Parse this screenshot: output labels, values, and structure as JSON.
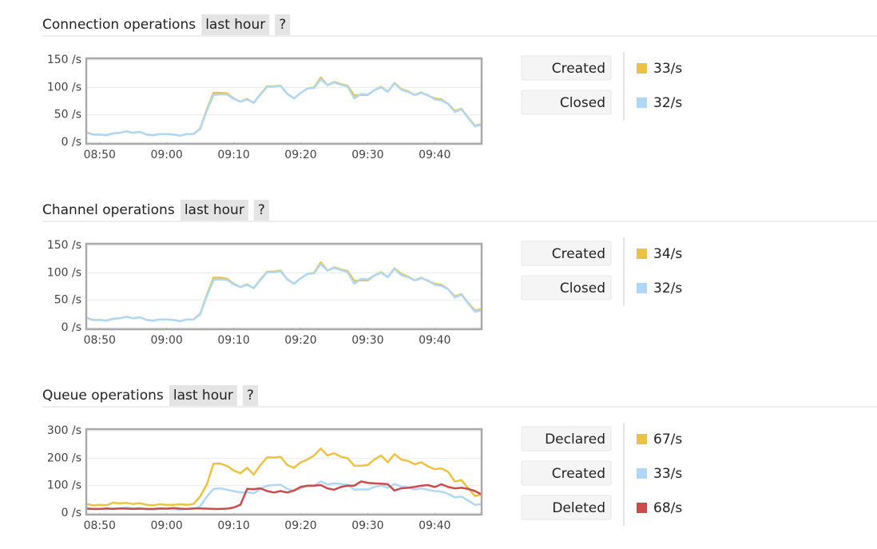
{
  "chart_data": [
    {
      "type": "line",
      "title": "Connection operations",
      "period": "last hour",
      "help": "?",
      "x": [
        "08:48",
        "08:49",
        "08:50",
        "08:51",
        "08:52",
        "08:53",
        "08:54",
        "08:55",
        "08:56",
        "08:57",
        "08:58",
        "08:59",
        "09:00",
        "09:01",
        "09:02",
        "09:03",
        "09:04",
        "09:05",
        "09:06",
        "09:07",
        "09:08",
        "09:09",
        "09:10",
        "09:11",
        "09:12",
        "09:13",
        "09:14",
        "09:15",
        "09:16",
        "09:17",
        "09:18",
        "09:19",
        "09:20",
        "09:21",
        "09:22",
        "09:23",
        "09:24",
        "09:25",
        "09:26",
        "09:27",
        "09:28",
        "09:29",
        "09:30",
        "09:31",
        "09:32",
        "09:33",
        "09:34",
        "09:35",
        "09:36",
        "09:37",
        "09:38",
        "09:39",
        "09:40",
        "09:41",
        "09:42",
        "09:43",
        "09:44",
        "09:45",
        "09:46",
        "09:47"
      ],
      "xlim": [
        "08:48",
        "09:47"
      ],
      "xticks": [
        "08:50",
        "09:00",
        "09:10",
        "09:20",
        "09:30",
        "09:40"
      ],
      "ylim": [
        0,
        150
      ],
      "yticks": [
        {
          "value": 0,
          "label": "0 /s"
        },
        {
          "value": 50,
          "label": "50 /s"
        },
        {
          "value": 100,
          "label": "100 /s"
        },
        {
          "value": 150,
          "label": "150 /s"
        }
      ],
      "grid": true,
      "series": [
        {
          "name": "Created",
          "color": "#edc240",
          "rate": "33/s",
          "values": [
            18,
            14,
            14,
            13,
            16,
            17,
            20,
            17,
            19,
            14,
            13,
            15,
            15,
            14,
            12,
            15,
            15,
            25,
            60,
            90,
            90,
            89,
            80,
            74,
            79,
            72,
            88,
            102,
            102,
            103,
            88,
            80,
            90,
            98,
            100,
            118,
            104,
            110,
            106,
            103,
            85,
            86,
            86,
            95,
            101,
            92,
            108,
            97,
            93,
            86,
            91,
            85,
            80,
            78,
            70,
            57,
            61,
            45,
            30,
            33
          ]
        },
        {
          "name": "Closed",
          "color": "#afd8f8",
          "rate": "32/s",
          "values": [
            18,
            14,
            14,
            13,
            16,
            17,
            20,
            17,
            19,
            14,
            13,
            15,
            15,
            14,
            12,
            15,
            15,
            24,
            58,
            86,
            87,
            87,
            79,
            74,
            78,
            72,
            87,
            101,
            101,
            103,
            88,
            80,
            90,
            98,
            99,
            115,
            104,
            109,
            105,
            101,
            80,
            88,
            87,
            95,
            100,
            92,
            107,
            96,
            92,
            86,
            90,
            86,
            78,
            76,
            70,
            55,
            60,
            44,
            29,
            32
          ]
        }
      ]
    },
    {
      "type": "line",
      "title": "Channel operations",
      "period": "last hour",
      "help": "?",
      "x": [
        "08:48",
        "08:49",
        "08:50",
        "08:51",
        "08:52",
        "08:53",
        "08:54",
        "08:55",
        "08:56",
        "08:57",
        "08:58",
        "08:59",
        "09:00",
        "09:01",
        "09:02",
        "09:03",
        "09:04",
        "09:05",
        "09:06",
        "09:07",
        "09:08",
        "09:09",
        "09:10",
        "09:11",
        "09:12",
        "09:13",
        "09:14",
        "09:15",
        "09:16",
        "09:17",
        "09:18",
        "09:19",
        "09:20",
        "09:21",
        "09:22",
        "09:23",
        "09:24",
        "09:25",
        "09:26",
        "09:27",
        "09:28",
        "09:29",
        "09:30",
        "09:31",
        "09:32",
        "09:33",
        "09:34",
        "09:35",
        "09:36",
        "09:37",
        "09:38",
        "09:39",
        "09:40",
        "09:41",
        "09:42",
        "09:43",
        "09:44",
        "09:45",
        "09:46",
        "09:47"
      ],
      "xlim": [
        "08:48",
        "09:47"
      ],
      "xticks": [
        "08:50",
        "09:00",
        "09:10",
        "09:20",
        "09:30",
        "09:40"
      ],
      "ylim": [
        0,
        150
      ],
      "yticks": [
        {
          "value": 0,
          "label": "0 /s"
        },
        {
          "value": 50,
          "label": "50 /s"
        },
        {
          "value": 100,
          "label": "100 /s"
        },
        {
          "value": 150,
          "label": "150 /s"
        }
      ],
      "grid": true,
      "series": [
        {
          "name": "Created",
          "color": "#edc240",
          "rate": "34/s",
          "values": [
            18,
            14,
            14,
            13,
            16,
            17,
            20,
            17,
            19,
            14,
            13,
            15,
            15,
            14,
            12,
            15,
            15,
            25,
            60,
            91,
            91,
            89,
            80,
            74,
            79,
            72,
            88,
            102,
            102,
            104,
            88,
            80,
            90,
            98,
            100,
            119,
            104,
            110,
            106,
            103,
            85,
            86,
            86,
            95,
            101,
            92,
            108,
            98,
            93,
            86,
            91,
            85,
            80,
            78,
            70,
            57,
            61,
            45,
            31,
            34
          ]
        },
        {
          "name": "Closed",
          "color": "#afd8f8",
          "rate": "32/s",
          "values": [
            18,
            14,
            14,
            13,
            16,
            17,
            20,
            17,
            19,
            14,
            13,
            15,
            15,
            14,
            12,
            15,
            15,
            24,
            58,
            87,
            88,
            87,
            79,
            74,
            78,
            72,
            87,
            101,
            101,
            103,
            88,
            80,
            90,
            98,
            99,
            116,
            104,
            109,
            105,
            101,
            80,
            89,
            88,
            95,
            100,
            92,
            107,
            96,
            92,
            86,
            90,
            86,
            78,
            76,
            70,
            55,
            60,
            44,
            29,
            32
          ]
        }
      ]
    },
    {
      "type": "line",
      "title": "Queue operations",
      "period": "last hour",
      "help": "?",
      "x": [
        "08:48",
        "08:49",
        "08:50",
        "08:51",
        "08:52",
        "08:53",
        "08:54",
        "08:55",
        "08:56",
        "08:57",
        "08:58",
        "08:59",
        "09:00",
        "09:01",
        "09:02",
        "09:03",
        "09:04",
        "09:05",
        "09:06",
        "09:07",
        "09:08",
        "09:09",
        "09:10",
        "09:11",
        "09:12",
        "09:13",
        "09:14",
        "09:15",
        "09:16",
        "09:17",
        "09:18",
        "09:19",
        "09:20",
        "09:21",
        "09:22",
        "09:23",
        "09:24",
        "09:25",
        "09:26",
        "09:27",
        "09:28",
        "09:29",
        "09:30",
        "09:31",
        "09:32",
        "09:33",
        "09:34",
        "09:35",
        "09:36",
        "09:37",
        "09:38",
        "09:39",
        "09:40",
        "09:41",
        "09:42",
        "09:43",
        "09:44",
        "09:45",
        "09:46",
        "09:47"
      ],
      "xlim": [
        "08:48",
        "09:47"
      ],
      "xticks": [
        "08:50",
        "09:00",
        "09:10",
        "09:20",
        "09:30",
        "09:40"
      ],
      "ylim": [
        0,
        300
      ],
      "yticks": [
        {
          "value": 0,
          "label": "0 /s"
        },
        {
          "value": 100,
          "label": "100 /s"
        },
        {
          "value": 200,
          "label": "200 /s"
        },
        {
          "value": 300,
          "label": "300 /s"
        }
      ],
      "grid": true,
      "series": [
        {
          "name": "Declared",
          "color": "#edc240",
          "rate": "67/s",
          "values": [
            33,
            28,
            30,
            28,
            38,
            35,
            37,
            33,
            36,
            30,
            28,
            32,
            30,
            30,
            32,
            30,
            33,
            60,
            105,
            180,
            180,
            172,
            155,
            145,
            165,
            140,
            175,
            203,
            202,
            205,
            175,
            165,
            185,
            195,
            210,
            235,
            210,
            218,
            205,
            200,
            172,
            172,
            175,
            195,
            210,
            185,
            215,
            195,
            190,
            178,
            185,
            170,
            160,
            163,
            150,
            115,
            120,
            90,
            62,
            67
          ]
        },
        {
          "name": "Created",
          "color": "#afd8f8",
          "rate": "33/s",
          "values": [
            18,
            15,
            15,
            14,
            16,
            17,
            20,
            17,
            19,
            14,
            13,
            15,
            15,
            14,
            12,
            15,
            15,
            25,
            60,
            88,
            90,
            85,
            80,
            75,
            76,
            72,
            88,
            100,
            102,
            103,
            88,
            80,
            90,
            98,
            100,
            115,
            104,
            108,
            106,
            103,
            85,
            86,
            86,
            95,
            101,
            92,
            106,
            97,
            93,
            86,
            90,
            85,
            80,
            78,
            70,
            57,
            60,
            45,
            30,
            33
          ]
        },
        {
          "name": "Deleted",
          "color": "#cb4b4b",
          "rate": "68/s",
          "values": [
            16,
            15,
            15,
            17,
            15,
            17,
            16,
            15,
            16,
            15,
            15,
            17,
            16,
            18,
            16,
            15,
            17,
            17,
            16,
            15,
            15,
            16,
            20,
            30,
            88,
            87,
            90,
            80,
            75,
            80,
            75,
            82,
            95,
            100,
            100,
            102,
            90,
            85,
            95,
            100,
            100,
            115,
            110,
            108,
            107,
            105,
            82,
            90,
            92,
            95,
            100,
            102,
            95,
            105,
            95,
            90,
            92,
            88,
            80,
            68
          ]
        }
      ]
    }
  ]
}
